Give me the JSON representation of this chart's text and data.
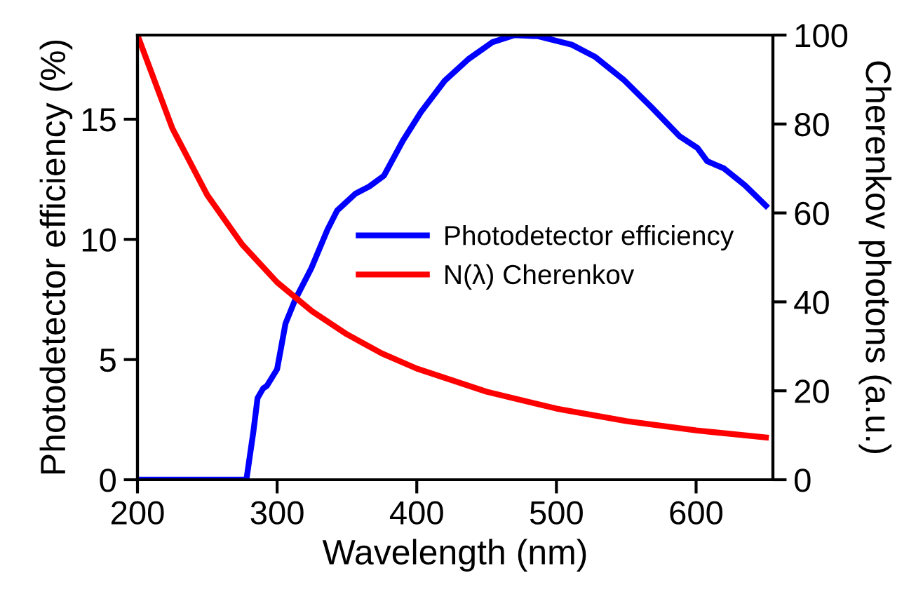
{
  "chart_data": {
    "type": "line",
    "xlabel": "Wavelength (nm)",
    "ylabel": "Photodetector efficiency (%)",
    "y2label": "Cherenkov photons (a.u.)",
    "xlim": [
      200,
      655
    ],
    "xticks": [
      200,
      300,
      400,
      500,
      600
    ],
    "ylim": [
      0,
      18.5
    ],
    "yticks": [
      0,
      5,
      10,
      15
    ],
    "y2lim": [
      0,
      100
    ],
    "y2ticks": [
      0,
      20,
      40,
      60,
      80,
      100
    ],
    "grid": false,
    "legend": "center right",
    "marker": "none",
    "line_style": "solid",
    "series": [
      {
        "name": "Photodetector efficiency",
        "color": "#0000ff",
        "x": [
          200,
          250,
          278,
          283,
          286,
          290,
          292.6,
          300,
          306,
          313,
          324.5,
          336,
          343,
          356,
          366,
          376.5,
          390,
          403,
          420,
          437,
          454,
          470,
          487,
          511,
          527.5,
          548,
          568,
          588,
          601,
          608,
          620,
          635,
          650
        ],
        "values": [
          0,
          0,
          0,
          2.0,
          3.4,
          3.8,
          3.9,
          4.6,
          6.5,
          7.5,
          8.8,
          10.4,
          11.2,
          11.9,
          12.2,
          12.65,
          14.1,
          15.3,
          16.6,
          17.5,
          18.2,
          18.5,
          18.45,
          18.1,
          17.6,
          16.65,
          15.5,
          14.3,
          13.8,
          13.25,
          12.95,
          12.25,
          11.4
        ]
      },
      {
        "name": "N(λ) Cherenkov",
        "color": "#ff0000",
        "axis": "y2",
        "x": [
          200,
          225,
          250,
          275,
          300,
          325,
          350,
          375,
          400,
          450,
          500,
          550,
          600,
          650
        ],
        "values": [
          100,
          79,
          64,
          52.9,
          44.4,
          37.9,
          32.7,
          28.4,
          25,
          19.8,
          16,
          13.2,
          11.1,
          9.5
        ]
      }
    ]
  }
}
